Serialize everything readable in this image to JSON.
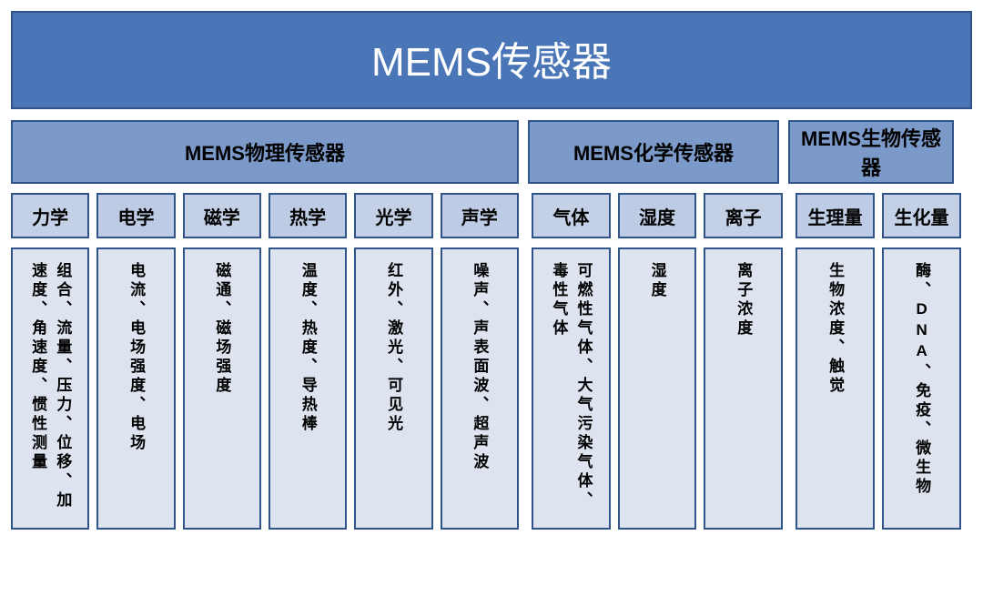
{
  "colors": {
    "title_bg": "#4a76b8",
    "cat_bg": "#7c9ac9",
    "sub_bg_a": "#c3d0e6",
    "sub_bg_b": "#bdcce4",
    "leaf_bg": "#dde4f0",
    "border": "#30538a",
    "title_text": "#ffffff",
    "body_text": "#000000"
  },
  "fontsize": {
    "title": 44,
    "category": 22,
    "sub": 20,
    "leaf": 17
  },
  "title": "MEMS传感器",
  "categories": [
    {
      "label": "MEMS物理传感器",
      "span": 6
    },
    {
      "label": "MEMS化学传感器",
      "span": 3
    },
    {
      "label": "MEMS生物传感器",
      "span": 2
    }
  ],
  "subcategories": {
    "group1": [
      "力学",
      "电学",
      "磁学",
      "热学",
      "光学",
      "声学"
    ],
    "group2": [
      "气体",
      "湿度",
      "离子"
    ],
    "group3": [
      "生理量",
      "生化量"
    ]
  },
  "leaves": {
    "group1": [
      [
        "组合、流量、压力、位移、加速度、角速度、惯性测量"
      ],
      [
        "电流、电场强度、电场"
      ],
      [
        "磁通、磁场强度"
      ],
      [
        "温度、热度、导热棒"
      ],
      [
        "红外、激光、可见光"
      ],
      [
        "噪声、声表面波、超声波"
      ]
    ],
    "group2": [
      [
        "可燃性气体、大气污染气体、毒性气体"
      ],
      [
        "湿度"
      ],
      [
        "离子浓度"
      ]
    ],
    "group3": [
      [
        "生物浓度、触觉"
      ],
      [
        "酶、DNA、免疫、微生物"
      ]
    ]
  },
  "layout": {
    "group1_width": 558,
    "group2_width": 276,
    "group3_width": 182,
    "gap_between_groups": 16,
    "cat_height": 70,
    "sub_height": 50,
    "leaf_height": 310
  }
}
